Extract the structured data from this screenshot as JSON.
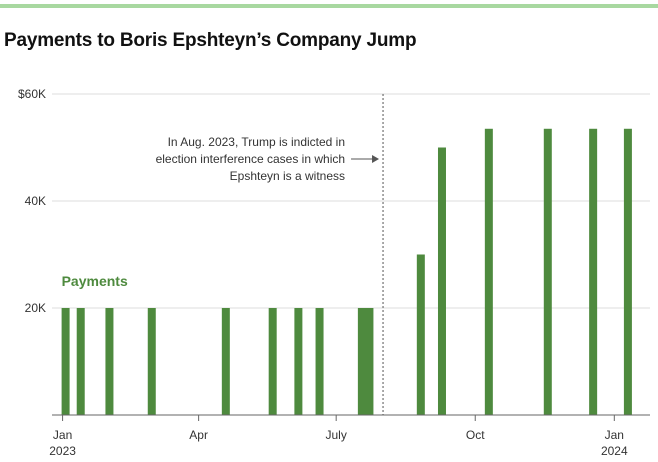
{
  "title": "Payments to Boris Epshteyn’s Company Jump",
  "colors": {
    "bar": "#4e8a3e",
    "accent_rule": "#a8d8a0",
    "grid": "#dddddd",
    "axis": "#666666"
  },
  "chart_data": {
    "type": "bar",
    "title": "Payments to Boris Epshteyn’s Company Jump",
    "series": [
      {
        "name": "Payments",
        "points": [
          {
            "date": "2023-01-03",
            "value": 20000
          },
          {
            "date": "2023-01-13",
            "value": 20000
          },
          {
            "date": "2023-02-01",
            "value": 20000
          },
          {
            "date": "2023-03-01",
            "value": 20000
          },
          {
            "date": "2023-04-19",
            "value": 20000
          },
          {
            "date": "2023-05-20",
            "value": 20000
          },
          {
            "date": "2023-06-06",
            "value": 20000
          },
          {
            "date": "2023-06-20",
            "value": 20000
          },
          {
            "date": "2023-07-18",
            "value": 20000
          },
          {
            "date": "2023-07-23",
            "value": 20000
          },
          {
            "date": "2023-08-26",
            "value": 30000
          },
          {
            "date": "2023-09-09",
            "value": 50000
          },
          {
            "date": "2023-10-10",
            "value": 53500
          },
          {
            "date": "2023-11-18",
            "value": 53500
          },
          {
            "date": "2023-12-18",
            "value": 53500
          },
          {
            "date": "2024-01-10",
            "value": 53500
          }
        ]
      }
    ],
    "ylim": [
      0,
      60000
    ],
    "y_ticks": [
      {
        "value": 20000,
        "label": "20K"
      },
      {
        "value": 40000,
        "label": "40K"
      },
      {
        "value": 60000,
        "label": "$60K"
      }
    ],
    "x_range": [
      "2022-12-25",
      "2024-01-18"
    ],
    "x_ticks": [
      {
        "date": "2023-01-01",
        "label": "Jan",
        "sublabel": "2023"
      },
      {
        "date": "2023-04-01",
        "label": "Apr",
        "sublabel": ""
      },
      {
        "date": "2023-07-01",
        "label": "July",
        "sublabel": ""
      },
      {
        "date": "2023-10-01",
        "label": "Oct",
        "sublabel": ""
      },
      {
        "date": "2024-01-01",
        "label": "Jan",
        "sublabel": "2024"
      }
    ],
    "grid": true,
    "annotation": {
      "date": "2023-08-01",
      "lines": [
        "In Aug. 2023, Trump is indicted in",
        "election interference cases in which",
        "Epshteyn is a witness"
      ]
    }
  }
}
